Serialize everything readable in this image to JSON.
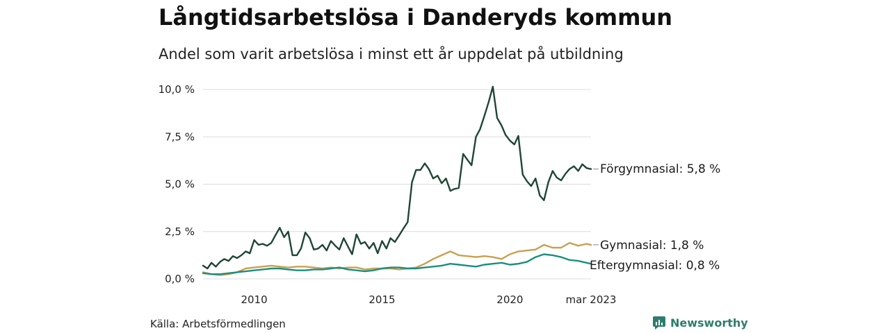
{
  "title": "Långtidsarbetslösa i Danderyds kommun",
  "subtitle": "Andel som varit arbetslösa i minst ett år uppdelat på utbildning",
  "source": "Källa: Arbetsförmedlingen",
  "brand": {
    "name": "Newsworthy",
    "icon": "newsworthy-logo-icon",
    "color": "#2e7d6e"
  },
  "chart_data": {
    "type": "line",
    "x_unit": "year",
    "xlim": [
      2008.0,
      2023.17
    ],
    "ylim": [
      0,
      10.0
    ],
    "y_ticks": [
      0,
      2.5,
      5.0,
      7.5,
      10.0
    ],
    "y_tick_labels": [
      "0,0 %",
      "2,5 %",
      "5,0 %",
      "7,5 %",
      "10,0 %"
    ],
    "x_ticks": [
      2010,
      2015,
      2020,
      2023.17
    ],
    "x_tick_labels": [
      "2010",
      "2015",
      "2020",
      "mar 2023"
    ],
    "grid": "horizontal",
    "legend": "direct labels at line ends",
    "series": [
      {
        "name": "Förgymnasial",
        "end_label": "Förgymnasial: 5,8 %",
        "color": "#1e4535",
        "points": [
          [
            2008.0,
            0.7
          ],
          [
            2008.17,
            0.55
          ],
          [
            2008.33,
            0.85
          ],
          [
            2008.5,
            0.65
          ],
          [
            2008.67,
            0.9
          ],
          [
            2008.83,
            1.05
          ],
          [
            2009.0,
            0.95
          ],
          [
            2009.17,
            1.2
          ],
          [
            2009.33,
            1.1
          ],
          [
            2009.5,
            1.25
          ],
          [
            2009.67,
            1.45
          ],
          [
            2009.83,
            1.35
          ],
          [
            2010.0,
            2.05
          ],
          [
            2010.17,
            1.8
          ],
          [
            2010.33,
            1.85
          ],
          [
            2010.5,
            1.75
          ],
          [
            2010.67,
            1.9
          ],
          [
            2010.83,
            2.3
          ],
          [
            2011.0,
            2.7
          ],
          [
            2011.17,
            2.2
          ],
          [
            2011.33,
            2.5
          ],
          [
            2011.5,
            1.25
          ],
          [
            2011.67,
            1.25
          ],
          [
            2011.83,
            1.6
          ],
          [
            2012.0,
            2.45
          ],
          [
            2012.17,
            2.15
          ],
          [
            2012.33,
            1.55
          ],
          [
            2012.5,
            1.6
          ],
          [
            2012.67,
            1.8
          ],
          [
            2012.83,
            1.5
          ],
          [
            2013.0,
            2.0
          ],
          [
            2013.17,
            1.75
          ],
          [
            2013.33,
            1.55
          ],
          [
            2013.5,
            2.15
          ],
          [
            2013.67,
            1.7
          ],
          [
            2013.83,
            1.3
          ],
          [
            2014.0,
            2.35
          ],
          [
            2014.17,
            1.85
          ],
          [
            2014.33,
            1.95
          ],
          [
            2014.5,
            1.6
          ],
          [
            2014.67,
            1.9
          ],
          [
            2014.83,
            1.35
          ],
          [
            2015.0,
            2.0
          ],
          [
            2015.17,
            1.6
          ],
          [
            2015.33,
            2.15
          ],
          [
            2015.5,
            1.95
          ],
          [
            2015.67,
            2.3
          ],
          [
            2015.83,
            2.65
          ],
          [
            2016.0,
            3.0
          ],
          [
            2016.17,
            5.1
          ],
          [
            2016.33,
            5.75
          ],
          [
            2016.5,
            5.75
          ],
          [
            2016.67,
            6.1
          ],
          [
            2016.83,
            5.8
          ],
          [
            2017.0,
            5.3
          ],
          [
            2017.17,
            5.45
          ],
          [
            2017.33,
            5.05
          ],
          [
            2017.5,
            5.3
          ],
          [
            2017.67,
            4.65
          ],
          [
            2017.83,
            4.75
          ],
          [
            2018.0,
            4.8
          ],
          [
            2018.17,
            6.6
          ],
          [
            2018.33,
            6.3
          ],
          [
            2018.5,
            6.0
          ],
          [
            2018.67,
            7.5
          ],
          [
            2018.83,
            7.9
          ],
          [
            2019.0,
            8.6
          ],
          [
            2019.17,
            9.35
          ],
          [
            2019.33,
            10.15
          ],
          [
            2019.5,
            8.5
          ],
          [
            2019.67,
            8.1
          ],
          [
            2019.83,
            7.6
          ],
          [
            2020.0,
            7.3
          ],
          [
            2020.17,
            7.1
          ],
          [
            2020.33,
            7.55
          ],
          [
            2020.5,
            5.5
          ],
          [
            2020.67,
            5.15
          ],
          [
            2020.83,
            4.9
          ],
          [
            2021.0,
            5.3
          ],
          [
            2021.17,
            4.4
          ],
          [
            2021.33,
            4.15
          ],
          [
            2021.5,
            5.1
          ],
          [
            2021.67,
            5.7
          ],
          [
            2021.83,
            5.35
          ],
          [
            2022.0,
            5.2
          ],
          [
            2022.17,
            5.55
          ],
          [
            2022.33,
            5.8
          ],
          [
            2022.5,
            5.95
          ],
          [
            2022.67,
            5.7
          ],
          [
            2022.83,
            6.05
          ],
          [
            2023.0,
            5.85
          ],
          [
            2023.17,
            5.8
          ]
        ]
      },
      {
        "name": "Gymnasial",
        "end_label": "Gymnasial: 1,8 %",
        "color": "#c9a050",
        "points": [
          [
            2008.0,
            0.35
          ],
          [
            2008.33,
            0.25
          ],
          [
            2008.67,
            0.2
          ],
          [
            2009.0,
            0.25
          ],
          [
            2009.33,
            0.35
          ],
          [
            2009.67,
            0.55
          ],
          [
            2010.0,
            0.6
          ],
          [
            2010.33,
            0.65
          ],
          [
            2010.67,
            0.7
          ],
          [
            2011.0,
            0.65
          ],
          [
            2011.33,
            0.6
          ],
          [
            2011.67,
            0.65
          ],
          [
            2012.0,
            0.65
          ],
          [
            2012.33,
            0.6
          ],
          [
            2012.67,
            0.55
          ],
          [
            2013.0,
            0.6
          ],
          [
            2013.33,
            0.55
          ],
          [
            2013.67,
            0.6
          ],
          [
            2014.0,
            0.6
          ],
          [
            2014.33,
            0.5
          ],
          [
            2014.67,
            0.55
          ],
          [
            2015.0,
            0.55
          ],
          [
            2015.33,
            0.55
          ],
          [
            2015.67,
            0.5
          ],
          [
            2016.0,
            0.55
          ],
          [
            2016.33,
            0.6
          ],
          [
            2016.67,
            0.8
          ],
          [
            2017.0,
            1.05
          ],
          [
            2017.33,
            1.25
          ],
          [
            2017.67,
            1.45
          ],
          [
            2018.0,
            1.25
          ],
          [
            2018.33,
            1.2
          ],
          [
            2018.67,
            1.15
          ],
          [
            2019.0,
            1.2
          ],
          [
            2019.33,
            1.15
          ],
          [
            2019.67,
            1.05
          ],
          [
            2020.0,
            1.3
          ],
          [
            2020.33,
            1.45
          ],
          [
            2020.67,
            1.5
          ],
          [
            2021.0,
            1.55
          ],
          [
            2021.33,
            1.8
          ],
          [
            2021.67,
            1.65
          ],
          [
            2022.0,
            1.65
          ],
          [
            2022.33,
            1.9
          ],
          [
            2022.67,
            1.75
          ],
          [
            2023.0,
            1.85
          ],
          [
            2023.17,
            1.8
          ]
        ]
      },
      {
        "name": "Eftergymnasial",
        "end_label": "Eftergymnasial: 0,8 %",
        "color": "#1a8e7e",
        "points": [
          [
            2008.0,
            0.3
          ],
          [
            2008.33,
            0.25
          ],
          [
            2008.67,
            0.25
          ],
          [
            2009.0,
            0.3
          ],
          [
            2009.33,
            0.35
          ],
          [
            2009.67,
            0.4
          ],
          [
            2010.0,
            0.45
          ],
          [
            2010.33,
            0.5
          ],
          [
            2010.67,
            0.55
          ],
          [
            2011.0,
            0.55
          ],
          [
            2011.33,
            0.5
          ],
          [
            2011.67,
            0.45
          ],
          [
            2012.0,
            0.45
          ],
          [
            2012.33,
            0.5
          ],
          [
            2012.67,
            0.5
          ],
          [
            2013.0,
            0.55
          ],
          [
            2013.33,
            0.6
          ],
          [
            2013.67,
            0.5
          ],
          [
            2014.0,
            0.45
          ],
          [
            2014.33,
            0.4
          ],
          [
            2014.67,
            0.45
          ],
          [
            2015.0,
            0.55
          ],
          [
            2015.33,
            0.6
          ],
          [
            2015.67,
            0.6
          ],
          [
            2016.0,
            0.55
          ],
          [
            2016.33,
            0.55
          ],
          [
            2016.67,
            0.6
          ],
          [
            2017.0,
            0.65
          ],
          [
            2017.33,
            0.7
          ],
          [
            2017.67,
            0.8
          ],
          [
            2018.0,
            0.75
          ],
          [
            2018.33,
            0.7
          ],
          [
            2018.67,
            0.65
          ],
          [
            2019.0,
            0.75
          ],
          [
            2019.33,
            0.8
          ],
          [
            2019.67,
            0.85
          ],
          [
            2020.0,
            0.75
          ],
          [
            2020.33,
            0.8
          ],
          [
            2020.67,
            0.9
          ],
          [
            2021.0,
            1.15
          ],
          [
            2021.33,
            1.3
          ],
          [
            2021.67,
            1.25
          ],
          [
            2022.0,
            1.15
          ],
          [
            2022.33,
            1.0
          ],
          [
            2022.67,
            0.95
          ],
          [
            2023.0,
            0.85
          ],
          [
            2023.17,
            0.8
          ]
        ]
      }
    ]
  }
}
